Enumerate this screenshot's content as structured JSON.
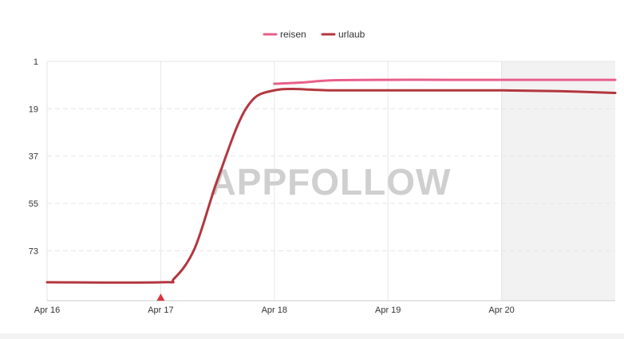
{
  "watermark": "APPFOLLOW",
  "colors": {
    "reisen": "#e8608a",
    "urlaub": "#b3363f",
    "grid": "#e6e6e6",
    "shade": "#f2f2f2",
    "marker": "#d9343f"
  },
  "chart_data": {
    "type": "line",
    "title": "",
    "xlabel": "",
    "ylabel": "",
    "y_reversed": true,
    "ylim": [
      1,
      92
    ],
    "y_ticks": [
      1,
      19,
      37,
      55,
      73
    ],
    "x_ticks": [
      "Apr 16",
      "Apr 17",
      "Apr 18",
      "Apr 19",
      "Apr 20"
    ],
    "x_range_days": [
      0,
      5
    ],
    "shaded_region_days": [
      4,
      5
    ],
    "marker_at": "Apr 17",
    "legend_position": "top-center",
    "grid": true,
    "series": [
      {
        "name": "reisen",
        "color": "#e8608a",
        "points": [
          [
            1,
            9.5
          ],
          [
            1.25,
            9
          ],
          [
            1.5,
            8.2
          ],
          [
            2,
            8
          ],
          [
            2.5,
            8
          ],
          [
            3,
            8
          ],
          [
            3.5,
            8
          ],
          [
            4,
            8
          ]
        ]
      },
      {
        "name": "urlaub",
        "color": "#b3363f",
        "points": [
          [
            -1,
            85
          ],
          [
            0,
            85
          ],
          [
            0.12,
            83.5
          ],
          [
            0.3,
            72
          ],
          [
            0.5,
            46
          ],
          [
            0.75,
            19
          ],
          [
            1,
            12
          ],
          [
            1.5,
            12
          ],
          [
            2,
            12
          ],
          [
            2.5,
            12
          ],
          [
            3,
            12
          ],
          [
            3.5,
            12.3
          ],
          [
            4,
            13
          ]
        ]
      }
    ]
  }
}
